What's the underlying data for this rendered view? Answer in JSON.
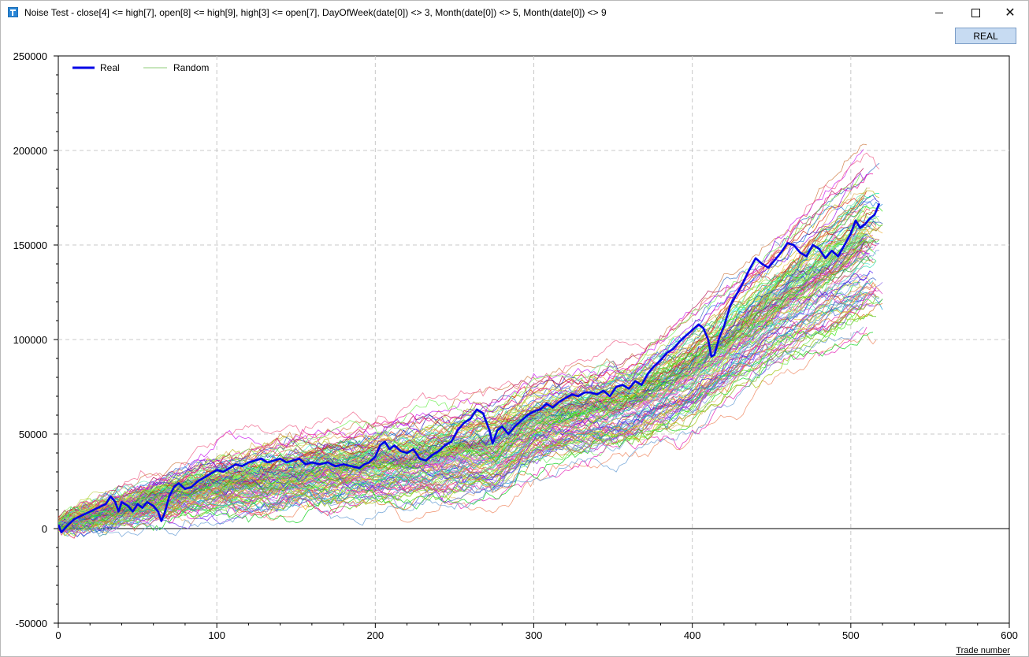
{
  "window": {
    "title": "Noise Test - close[4] <= high[7], open[8] <= high[9], high[3] <= open[7], DayOfWeek(date[0]) <> 3, Month(date[0]) <> 5, Month(date[0]) <> 9",
    "icon": "tt-app-icon",
    "controls": [
      "minimize",
      "maximize",
      "close"
    ]
  },
  "toolbar": {
    "real_button_label": "REAL"
  },
  "chart_data": {
    "type": "line",
    "xlabel": "Trade number",
    "ylabel": "",
    "xlim": [
      0,
      600
    ],
    "ylim": [
      -50000,
      250000
    ],
    "x_ticks": [
      "0",
      "100",
      "200",
      "300",
      "400",
      "500",
      "600"
    ],
    "y_ticks": [
      "250000",
      "200000",
      "150000",
      "100000",
      "50000",
      "0",
      "-50000"
    ],
    "grid": true,
    "legend_position": "top-left",
    "legend": [
      {
        "name": "Real",
        "color": "#0000e6"
      },
      {
        "name": "Random",
        "color": "#8fce7a"
      }
    ],
    "real_series": {
      "name": "Real",
      "color": "#0000e6",
      "points": [
        [
          0,
          2000
        ],
        [
          2,
          -2000
        ],
        [
          5,
          1000
        ],
        [
          10,
          5000
        ],
        [
          15,
          7000
        ],
        [
          20,
          9000
        ],
        [
          25,
          11000
        ],
        [
          30,
          13000
        ],
        [
          33,
          17000
        ],
        [
          36,
          14000
        ],
        [
          38,
          9000
        ],
        [
          40,
          14000
        ],
        [
          44,
          12000
        ],
        [
          47,
          9000
        ],
        [
          50,
          13000
        ],
        [
          53,
          11000
        ],
        [
          56,
          14000
        ],
        [
          60,
          12000
        ],
        [
          63,
          9000
        ],
        [
          65,
          4000
        ],
        [
          67,
          8000
        ],
        [
          70,
          17000
        ],
        [
          73,
          22000
        ],
        [
          76,
          24000
        ],
        [
          80,
          21000
        ],
        [
          84,
          22000
        ],
        [
          88,
          25000
        ],
        [
          92,
          27000
        ],
        [
          96,
          29000
        ],
        [
          100,
          31000
        ],
        [
          104,
          30000
        ],
        [
          108,
          32000
        ],
        [
          112,
          34000
        ],
        [
          116,
          33000
        ],
        [
          120,
          35000
        ],
        [
          124,
          36000
        ],
        [
          128,
          37000
        ],
        [
          132,
          35000
        ],
        [
          136,
          36000
        ],
        [
          140,
          37000
        ],
        [
          144,
          35000
        ],
        [
          148,
          36000
        ],
        [
          152,
          37000
        ],
        [
          156,
          34000
        ],
        [
          160,
          35000
        ],
        [
          165,
          34000
        ],
        [
          170,
          35000
        ],
        [
          175,
          33000
        ],
        [
          180,
          34000
        ],
        [
          185,
          33000
        ],
        [
          190,
          32000
        ],
        [
          193,
          34000
        ],
        [
          196,
          35000
        ],
        [
          200,
          38000
        ],
        [
          203,
          44000
        ],
        [
          206,
          46000
        ],
        [
          209,
          42000
        ],
        [
          212,
          44000
        ],
        [
          216,
          41000
        ],
        [
          220,
          40000
        ],
        [
          224,
          42000
        ],
        [
          228,
          37000
        ],
        [
          232,
          36000
        ],
        [
          236,
          39000
        ],
        [
          240,
          41000
        ],
        [
          244,
          44000
        ],
        [
          248,
          46000
        ],
        [
          252,
          52000
        ],
        [
          256,
          56000
        ],
        [
          260,
          58000
        ],
        [
          264,
          63000
        ],
        [
          268,
          61000
        ],
        [
          272,
          52000
        ],
        [
          274,
          45000
        ],
        [
          277,
          52000
        ],
        [
          280,
          54000
        ],
        [
          284,
          50000
        ],
        [
          288,
          54000
        ],
        [
          292,
          57000
        ],
        [
          296,
          60000
        ],
        [
          300,
          62000
        ],
        [
          304,
          63000
        ],
        [
          308,
          66000
        ],
        [
          312,
          64000
        ],
        [
          316,
          67000
        ],
        [
          320,
          69000
        ],
        [
          324,
          71000
        ],
        [
          328,
          70000
        ],
        [
          332,
          72000
        ],
        [
          336,
          72000
        ],
        [
          340,
          71000
        ],
        [
          344,
          73000
        ],
        [
          348,
          70000
        ],
        [
          352,
          75000
        ],
        [
          356,
          76000
        ],
        [
          360,
          74000
        ],
        [
          364,
          78000
        ],
        [
          368,
          76000
        ],
        [
          372,
          82000
        ],
        [
          376,
          86000
        ],
        [
          380,
          89000
        ],
        [
          384,
          93000
        ],
        [
          388,
          95000
        ],
        [
          392,
          99000
        ],
        [
          396,
          102000
        ],
        [
          400,
          105000
        ],
        [
          404,
          108000
        ],
        [
          407,
          106000
        ],
        [
          410,
          100000
        ],
        [
          412,
          91000
        ],
        [
          414,
          92000
        ],
        [
          417,
          101000
        ],
        [
          420,
          107000
        ],
        [
          424,
          118000
        ],
        [
          428,
          124000
        ],
        [
          432,
          130000
        ],
        [
          436,
          137000
        ],
        [
          440,
          143000
        ],
        [
          444,
          140000
        ],
        [
          448,
          138000
        ],
        [
          452,
          142000
        ],
        [
          456,
          146000
        ],
        [
          460,
          151000
        ],
        [
          464,
          150000
        ],
        [
          468,
          146000
        ],
        [
          472,
          144000
        ],
        [
          476,
          150000
        ],
        [
          480,
          148000
        ],
        [
          484,
          143000
        ],
        [
          488,
          147000
        ],
        [
          492,
          144000
        ],
        [
          496,
          150000
        ],
        [
          500,
          156000
        ],
        [
          503,
          163000
        ],
        [
          506,
          159000
        ],
        [
          509,
          161000
        ],
        [
          512,
          164000
        ],
        [
          515,
          166000
        ],
        [
          518,
          172000
        ]
      ]
    },
    "random_series": {
      "name": "Random",
      "count": 140,
      "x_end": 520,
      "envelope": {
        "lower": [
          [
            0,
            0
          ],
          [
            100,
            6000
          ],
          [
            200,
            12000
          ],
          [
            275,
            12000
          ],
          [
            300,
            30000
          ],
          [
            360,
            42000
          ],
          [
            400,
            50000
          ],
          [
            450,
            82000
          ],
          [
            510,
            100000
          ]
        ],
        "upper": [
          [
            0,
            4000
          ],
          [
            100,
            40000
          ],
          [
            200,
            55000
          ],
          [
            275,
            72000
          ],
          [
            300,
            80000
          ],
          [
            360,
            90000
          ],
          [
            400,
            115000
          ],
          [
            450,
            150000
          ],
          [
            510,
            200000
          ]
        ]
      }
    }
  }
}
